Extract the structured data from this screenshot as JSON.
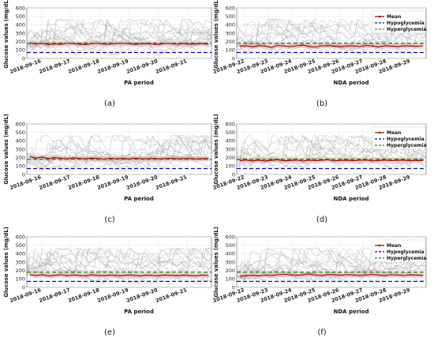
{
  "colors": {
    "mean": "#8b0000",
    "mean_band": "#e8a0a0",
    "hypoglycemia": "#0000cc",
    "hyperglycemia": "#228b22",
    "traces": "#9a9a9a"
  },
  "legend_labels": {
    "mean": "Mean",
    "hypo": "Hypoglycemia",
    "hyper": "Hyperglycemia"
  },
  "chart_data": [
    {
      "type": "line",
      "panel": "(a)",
      "ylabel": "Glucose values (mg/dL)",
      "xlabel": "PA period",
      "ylim": [
        0,
        600
      ],
      "yticks": [
        0,
        100,
        200,
        300,
        400,
        500,
        600
      ],
      "x_range": [
        "2018-09-15T12:00",
        "2018-09-21T20:00"
      ],
      "xticks": [
        "2018-09-16",
        "2018-09-17",
        "2018-09-18",
        "2018-09-19",
        "2018-09-20",
        "2018-09-21"
      ],
      "grid": true,
      "legend": false,
      "hypoglycemia": 70,
      "hyperglycemia": 180,
      "series": [
        {
          "name": "Mean",
          "values": [
            185,
            170,
            178,
            165,
            172,
            168,
            180,
            175,
            170,
            166,
            173,
            178,
            169,
            171,
            176,
            180,
            174,
            168,
            172,
            175,
            169,
            166,
            178,
            173,
            170,
            176,
            168,
            172,
            174,
            170
          ]
        }
      ]
    },
    {
      "type": "line",
      "panel": "(b)",
      "ylabel": "Glucose values (mg/dL)",
      "xlabel": "NDA period",
      "ylim": [
        0,
        600
      ],
      "yticks": [
        0,
        100,
        200,
        300,
        400,
        500,
        600
      ],
      "x_range": [
        "2018-09-21T16:00",
        "2018-09-29T16:00"
      ],
      "xticks": [
        "2018-09-22",
        "2018-09-23",
        "2018-09-24",
        "2018-09-25",
        "2018-09-26",
        "2018-09-27",
        "2018-09-28",
        "2018-09-29"
      ],
      "grid": true,
      "legend": true,
      "legend_position": "top-right",
      "hypoglycemia": 70,
      "hyperglycemia": 180,
      "series": [
        {
          "name": "Mean",
          "values": [
            145,
            150,
            138,
            152,
            148,
            130,
            155,
            147,
            140,
            150,
            158,
            142,
            136,
            150,
            153,
            146,
            138,
            150,
            149,
            141,
            155,
            148,
            137,
            152,
            146,
            140,
            151,
            148,
            143,
            150
          ]
        }
      ]
    },
    {
      "type": "line",
      "panel": "(c)",
      "ylabel": "Glucose values (mg/dL)",
      "xlabel": "PA period",
      "ylim": [
        0,
        600
      ],
      "yticks": [
        0,
        100,
        200,
        300,
        400,
        500,
        600
      ],
      "x_range": [
        "2018-09-15T12:00",
        "2018-09-21T20:00"
      ],
      "xticks": [
        "2018-09-16",
        "2018-09-17",
        "2018-09-18",
        "2018-09-19",
        "2018-09-20",
        "2018-09-21"
      ],
      "grid": true,
      "legend": false,
      "hypoglycemia": 70,
      "hyperglycemia": 180,
      "series": [
        {
          "name": "Mean",
          "values": [
            210,
            195,
            205,
            188,
            200,
            192,
            185,
            198,
            190,
            186,
            195,
            189,
            183,
            192,
            187,
            190,
            184,
            193,
            188,
            186,
            191,
            185,
            189,
            192,
            186,
            188,
            190,
            185,
            189,
            187
          ]
        }
      ]
    },
    {
      "type": "line",
      "panel": "(d)",
      "ylabel": "Glucose values (mg/dL)",
      "xlabel": "NDA period",
      "ylim": [
        0,
        600
      ],
      "yticks": [
        0,
        100,
        200,
        300,
        400,
        500,
        600
      ],
      "x_range": [
        "2018-09-21T16:00",
        "2018-09-29T16:00"
      ],
      "xticks": [
        "2018-09-22",
        "2018-09-23",
        "2018-09-24",
        "2018-09-25",
        "2018-09-26",
        "2018-09-27",
        "2018-09-28",
        "2018-09-29"
      ],
      "grid": true,
      "legend": true,
      "legend_position": "top-right",
      "hypoglycemia": 70,
      "hyperglycemia": 180,
      "series": [
        {
          "name": "Mean",
          "values": [
            165,
            172,
            160,
            170,
            158,
            168,
            175,
            162,
            166,
            171,
            159,
            170,
            164,
            168,
            173,
            161,
            167,
            170,
            163,
            169,
            172,
            160,
            166,
            171,
            164,
            168,
            170,
            162,
            167,
            165
          ]
        }
      ]
    },
    {
      "type": "line",
      "panel": "(e)",
      "ylabel": "Glucose values (mg/dL)",
      "xlabel": "PA period",
      "ylim": [
        0,
        600
      ],
      "yticks": [
        0,
        100,
        200,
        300,
        400,
        500,
        600
      ],
      "x_range": [
        "2018-09-15T12:00",
        "2018-09-21T20:00"
      ],
      "xticks": [
        "2018-09-16",
        "2018-09-17",
        "2018-09-18",
        "2018-09-19",
        "2018-09-20",
        "2018-09-21"
      ],
      "grid": true,
      "legend": false,
      "hypoglycemia": 70,
      "hyperglycemia": 180,
      "series": [
        {
          "name": "Mean",
          "values": [
            150,
            140,
            148,
            135,
            142,
            150,
            138,
            145,
            140,
            136,
            148,
            142,
            137,
            145,
            140,
            138,
            146,
            141,
            135,
            144,
            140,
            137,
            146,
            142,
            138,
            144,
            140,
            136,
            145,
            141
          ]
        }
      ]
    },
    {
      "type": "line",
      "panel": "(f)",
      "ylabel": "Glucose values (mg/dL)",
      "xlabel": "NDA period",
      "ylim": [
        0,
        600
      ],
      "yticks": [
        0,
        100,
        200,
        300,
        400,
        500,
        600
      ],
      "x_range": [
        "2018-09-21T16:00",
        "2018-09-29T16:00"
      ],
      "xticks": [
        "2018-09-22",
        "2018-09-23",
        "2018-09-24",
        "2018-09-25",
        "2018-09-26",
        "2018-09-27",
        "2018-09-28",
        "2018-09-29"
      ],
      "grid": true,
      "legend": true,
      "legend_position": "top-right",
      "hypoglycemia": 70,
      "hyperglycemia": 180,
      "series": [
        {
          "name": "Mean",
          "values": [
            130,
            138,
            142,
            135,
            145,
            140,
            150,
            155,
            148,
            142,
            150,
            158,
            145,
            140,
            152,
            148,
            143,
            150,
            146,
            140,
            148,
            152,
            144,
            139,
            150,
            146,
            141,
            148,
            144,
            142
          ]
        }
      ]
    }
  ]
}
